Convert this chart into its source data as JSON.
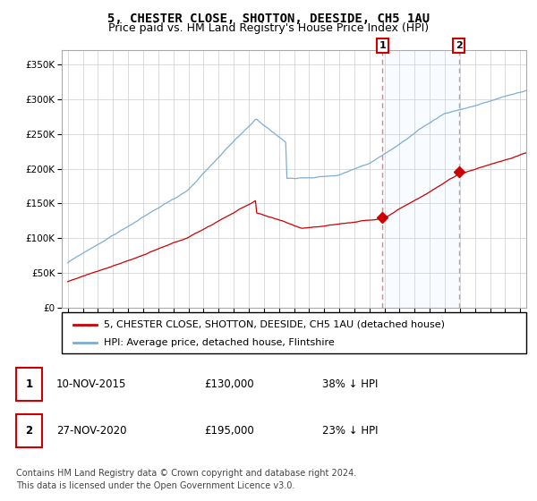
{
  "title": "5, CHESTER CLOSE, SHOTTON, DEESIDE, CH5 1AU",
  "subtitle": "Price paid vs. HM Land Registry's House Price Index (HPI)",
  "ylim": [
    0,
    370000
  ],
  "yticks": [
    0,
    50000,
    100000,
    150000,
    200000,
    250000,
    300000,
    350000
  ],
  "ytick_labels": [
    "£0",
    "£50K",
    "£100K",
    "£150K",
    "£200K",
    "£250K",
    "£300K",
    "£350K"
  ],
  "sale1_date": 2015.87,
  "sale1_price": 130000,
  "sale2_date": 2020.92,
  "sale2_price": 195000,
  "red_line_color": "#cc0000",
  "blue_line_color": "#7eadd4",
  "sale_marker_color": "#cc0000",
  "vline1_color": "#e88080",
  "vline2_color": "#aaaaaa",
  "annotation_box_color": "#cc0000",
  "grid_color": "#cccccc",
  "span_color": "#ddeeff",
  "legend_entry1": "5, CHESTER CLOSE, SHOTTON, DEESIDE, CH5 1AU (detached house)",
  "legend_entry2": "HPI: Average price, detached house, Flintshire",
  "table_row1": [
    "1",
    "10-NOV-2015",
    "£130,000",
    "38% ↓ HPI"
  ],
  "table_row2": [
    "2",
    "27-NOV-2020",
    "£195,000",
    "23% ↓ HPI"
  ],
  "footnote1": "Contains HM Land Registry data © Crown copyright and database right 2024.",
  "footnote2": "This data is licensed under the Open Government Licence v3.0.",
  "title_fontsize": 10,
  "subtitle_fontsize": 9,
  "tick_fontsize": 7.5,
  "legend_fontsize": 8,
  "table_fontsize": 8.5,
  "footnote_fontsize": 7
}
